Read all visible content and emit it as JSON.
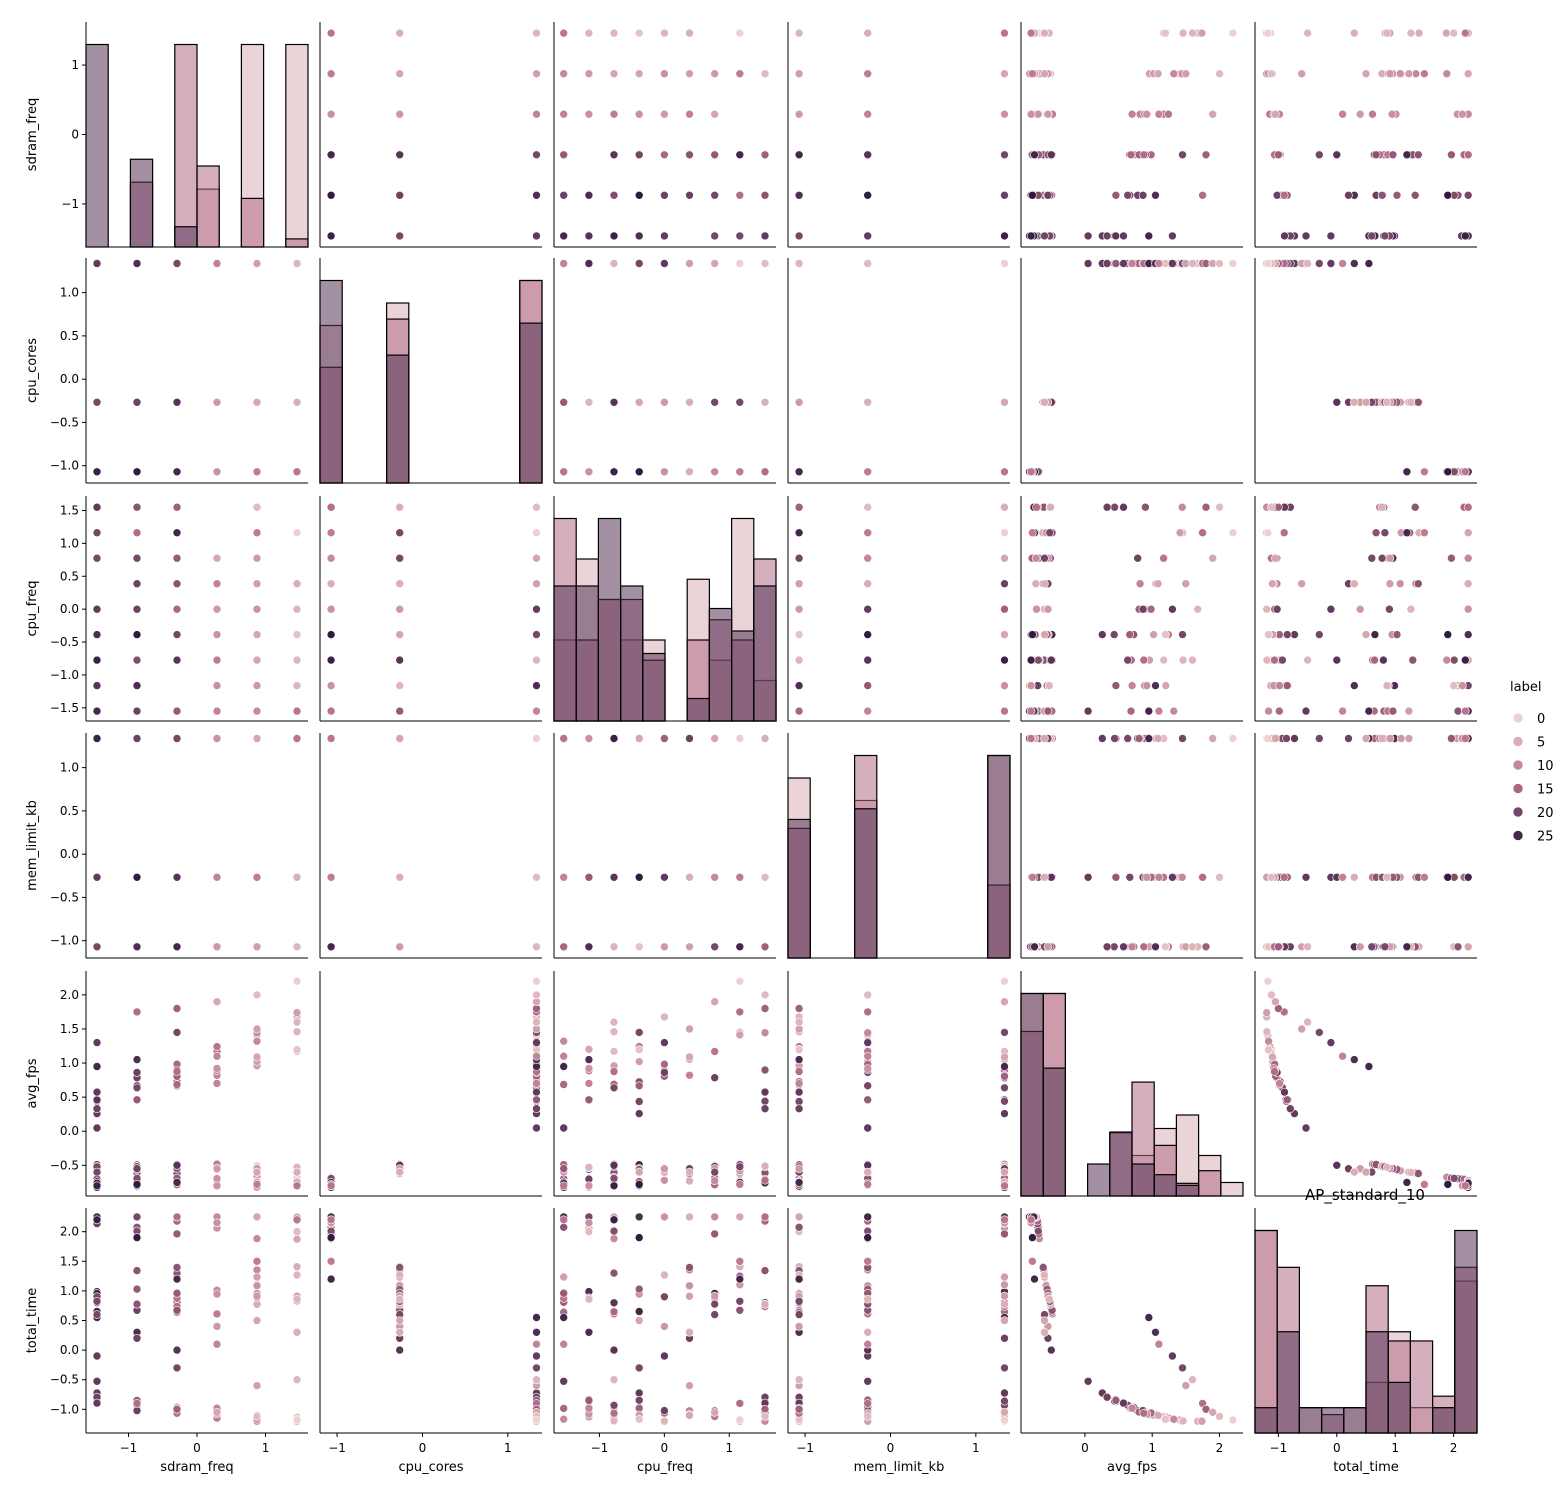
{
  "chart_data": {
    "type": "scatter",
    "subtitle": "AP_standard_10",
    "variables": [
      "sdram_freq",
      "cpu_cores",
      "cpu_freq",
      "mem_limit_kb",
      "avg_fps",
      "total_time"
    ],
    "diagonal": "histogram",
    "hue": {
      "name": "label",
      "range": [
        0,
        27
      ],
      "legend_ticks": [
        "0",
        "5",
        "10",
        "15",
        "20",
        "25"
      ],
      "color_light": "#ecd2ce",
      "color_dark": "#2f1c40"
    },
    "axes": {
      "sdram_freq": {
        "lim": [
          -1.62,
          1.62
        ],
        "ticks": [
          -1,
          0,
          1
        ],
        "tick_labels": [
          "−1",
          "0",
          "1"
        ]
      },
      "cpu_cores": {
        "lim": [
          -1.2,
          1.4
        ],
        "ticks": [
          -1.0,
          -0.5,
          0.0,
          0.5,
          1.0
        ],
        "tick_labels": [
          "−1.0",
          "−0.5",
          "0.0",
          "0.5",
          "1.0"
        ]
      },
      "cpu_freq": {
        "lim": [
          -1.7,
          1.72
        ],
        "ticks": [
          -1.5,
          -1.0,
          -0.5,
          0.0,
          0.5,
          1.0,
          1.5
        ],
        "tick_labels": [
          "−1.5",
          "−1.0",
          "−0.5",
          "0.0",
          "0.5",
          "1.0",
          "1.5"
        ]
      },
      "mem_limit_kb": {
        "lim": [
          -1.2,
          1.4
        ],
        "ticks": [
          -1.0,
          -0.5,
          0.0,
          0.5,
          1.0
        ],
        "tick_labels": [
          "−1.0",
          "−0.5",
          "0.0",
          "0.5",
          "1.0"
        ]
      },
      "avg_fps": {
        "lim": [
          -0.95,
          2.35
        ],
        "ticks": [
          -0.5,
          0.0,
          0.5,
          1.0,
          1.5,
          2.0
        ],
        "tick_labels": [
          "−0.5",
          "0.0",
          "0.5",
          "1.0",
          "1.5",
          "2.0"
        ]
      },
      "total_time": {
        "lim": [
          -1.4,
          2.4
        ],
        "ticks": [
          -1.0,
          -0.5,
          0.0,
          0.5,
          1.0,
          1.5,
          2.0
        ],
        "tick_labels": [
          "−1.0",
          "−0.5",
          "0.0",
          "0.5",
          "1.0",
          "1.5",
          "2.0"
        ]
      }
    },
    "column_ticks": {
      "sdram_freq": {
        "ticks": [
          -1,
          0,
          1
        ],
        "tick_labels": [
          "−1",
          "0",
          "1"
        ]
      },
      "cpu_cores": {
        "ticks": [
          -1,
          0,
          1
        ],
        "tick_labels": [
          "−1",
          "0",
          "1"
        ]
      },
      "cpu_freq": {
        "ticks": [
          -1,
          0,
          1
        ],
        "tick_labels": [
          "−1",
          "0",
          "1"
        ]
      },
      "mem_limit_kb": {
        "ticks": [
          -1,
          0,
          1
        ],
        "tick_labels": [
          "−1",
          "0",
          "1"
        ]
      },
      "avg_fps": {
        "ticks": [
          0,
          1,
          2
        ],
        "tick_labels": [
          "0",
          "1",
          "2"
        ]
      },
      "total_time": {
        "ticks": [
          -1,
          0,
          1,
          2
        ],
        "tick_labels": [
          "−1",
          "0",
          "1",
          "2"
        ]
      }
    },
    "levels": {
      "sdram_freq": [
        -1.46,
        -0.876,
        -0.292,
        0.292,
        0.876,
        1.46
      ],
      "cpu_cores": [
        -1.07,
        -0.267,
        1.336
      ],
      "cpu_freq": [
        -1.55,
        -1.162,
        -0.775,
        -0.387,
        0.0,
        0.387,
        0.775,
        1.162,
        1.55
      ],
      "mem_limit_kb": [
        -1.07,
        -0.267,
        1.336
      ]
    },
    "rows": [
      {
        "sdram_freq": -1.46,
        "cpu_cores": 1.336,
        "cpu_freq": -1.55,
        "mem_limit_kb": 1.336,
        "avg_fps": 0.95,
        "total_time": 0.55,
        "label": 25
      },
      {
        "sdram_freq": -1.46,
        "cpu_cores": 1.336,
        "cpu_freq": 0.0,
        "mem_limit_kb": -0.267,
        "avg_fps": 1.3,
        "total_time": -0.1,
        "label": 22
      },
      {
        "sdram_freq": -1.46,
        "cpu_cores": -0.267,
        "cpu_freq": 0.775,
        "mem_limit_kb": -1.07,
        "avg_fps": -0.6,
        "total_time": 0.6,
        "label": 20
      },
      {
        "sdram_freq": -1.46,
        "cpu_cores": -1.07,
        "cpu_freq": -0.775,
        "mem_limit_kb": 1.336,
        "avg_fps": -0.8,
        "total_time": 2.2,
        "label": 26
      },
      {
        "sdram_freq": -0.876,
        "cpu_cores": 1.336,
        "cpu_freq": 1.162,
        "mem_limit_kb": -0.267,
        "avg_fps": 1.75,
        "total_time": -0.9,
        "label": 14
      },
      {
        "sdram_freq": -0.876,
        "cpu_cores": 1.336,
        "cpu_freq": -1.162,
        "mem_limit_kb": -1.07,
        "avg_fps": 1.05,
        "total_time": 0.3,
        "label": 24
      },
      {
        "sdram_freq": -0.876,
        "cpu_cores": -0.267,
        "cpu_freq": 0.387,
        "mem_limit_kb": 1.336,
        "avg_fps": -0.55,
        "total_time": 0.2,
        "label": 21
      },
      {
        "sdram_freq": -0.876,
        "cpu_cores": -1.07,
        "cpu_freq": -0.387,
        "mem_limit_kb": -0.267,
        "avg_fps": -0.78,
        "total_time": 1.9,
        "label": 27
      },
      {
        "sdram_freq": -0.292,
        "cpu_cores": 1.336,
        "cpu_freq": 1.55,
        "mem_limit_kb": -1.07,
        "avg_fps": 1.8,
        "total_time": -1.0,
        "label": 16
      },
      {
        "sdram_freq": -0.292,
        "cpu_cores": 1.336,
        "cpu_freq": -0.387,
        "mem_limit_kb": 1.336,
        "avg_fps": 1.45,
        "total_time": -0.3,
        "label": 20
      },
      {
        "sdram_freq": -0.292,
        "cpu_cores": -0.267,
        "cpu_freq": -0.775,
        "mem_limit_kb": -0.267,
        "avg_fps": -0.5,
        "total_time": 0.0,
        "label": 23
      },
      {
        "sdram_freq": -0.292,
        "cpu_cores": -1.07,
        "cpu_freq": 1.162,
        "mem_limit_kb": -1.07,
        "avg_fps": -0.75,
        "total_time": 1.2,
        "label": 25
      },
      {
        "sdram_freq": 0.292,
        "cpu_cores": 1.336,
        "cpu_freq": 0.775,
        "mem_limit_kb": 1.336,
        "avg_fps": 1.9,
        "total_time": -1.05,
        "label": 6
      },
      {
        "sdram_freq": 0.292,
        "cpu_cores": 1.336,
        "cpu_freq": -1.55,
        "mem_limit_kb": -0.267,
        "avg_fps": 1.1,
        "total_time": 0.1,
        "label": 11
      },
      {
        "sdram_freq": 0.292,
        "cpu_cores": -0.267,
        "cpu_freq": 0.0,
        "mem_limit_kb": -1.07,
        "avg_fps": -0.55,
        "total_time": 0.4,
        "label": 8
      },
      {
        "sdram_freq": 0.292,
        "cpu_cores": -1.07,
        "cpu_freq": -1.162,
        "mem_limit_kb": 1.336,
        "avg_fps": -0.8,
        "total_time": 2.15,
        "label": 9
      },
      {
        "sdram_freq": 0.876,
        "cpu_cores": 1.336,
        "cpu_freq": 1.55,
        "mem_limit_kb": -0.267,
        "avg_fps": 2.0,
        "total_time": -1.12,
        "label": 3
      },
      {
        "sdram_freq": 0.876,
        "cpu_cores": 1.336,
        "cpu_freq": 0.387,
        "mem_limit_kb": -1.07,
        "avg_fps": 1.5,
        "total_time": -0.6,
        "label": 7
      },
      {
        "sdram_freq": 0.876,
        "cpu_cores": -0.267,
        "cpu_freq": -0.387,
        "mem_limit_kb": 1.336,
        "avg_fps": -0.6,
        "total_time": 0.5,
        "label": 6
      },
      {
        "sdram_freq": 0.876,
        "cpu_cores": -1.07,
        "cpu_freq": 1.162,
        "mem_limit_kb": -0.267,
        "avg_fps": -0.78,
        "total_time": 1.5,
        "label": 12
      },
      {
        "sdram_freq": 1.46,
        "cpu_cores": 1.336,
        "cpu_freq": 1.162,
        "mem_limit_kb": 1.336,
        "avg_fps": 2.2,
        "total_time": -1.18,
        "label": 0
      },
      {
        "sdram_freq": 1.46,
        "cpu_cores": 1.336,
        "cpu_freq": -0.775,
        "mem_limit_kb": -1.07,
        "avg_fps": 1.6,
        "total_time": -0.5,
        "label": 4
      },
      {
        "sdram_freq": 1.46,
        "cpu_cores": -0.267,
        "cpu_freq": 0.387,
        "mem_limit_kb": -0.267,
        "avg_fps": -0.6,
        "total_time": 0.3,
        "label": 5
      },
      {
        "sdram_freq": 1.46,
        "cpu_cores": -1.07,
        "cpu_freq": -1.55,
        "mem_limit_kb": 1.336,
        "avg_fps": -0.8,
        "total_time": 2.2,
        "label": 13
      }
    ]
  },
  "colors": {
    "axis": "#000000",
    "background": "#ffffff",
    "bar_edge": "#000000",
    "marker_edge": "#ffffff"
  }
}
